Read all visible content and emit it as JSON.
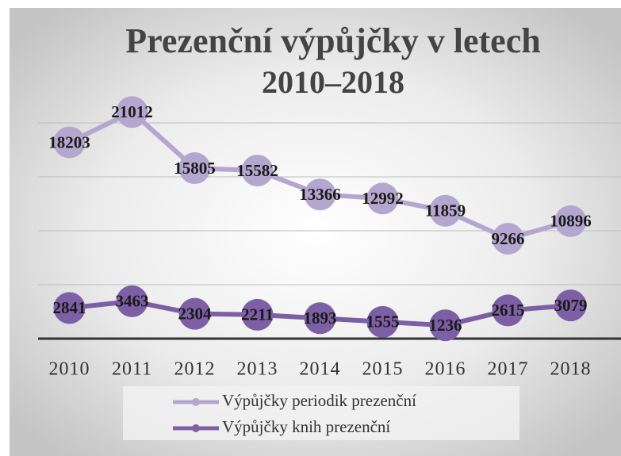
{
  "chart_data": {
    "type": "line",
    "title": "Prezenční výpůjčky v letech",
    "subtitle": "2010–2018",
    "categories": [
      "2010",
      "2011",
      "2012",
      "2013",
      "2014",
      "2015",
      "2016",
      "2017",
      "2018"
    ],
    "series": [
      {
        "name": "Výpůjčky periodik prezenční",
        "color": "#b4a7cf",
        "values": [
          18203,
          21012,
          15805,
          15582,
          13366,
          12992,
          11859,
          9266,
          10896
        ]
      },
      {
        "name": "Výpůjčky knih prezenční",
        "color": "#7d5fa6",
        "values": [
          2841,
          3463,
          2304,
          2211,
          1893,
          1555,
          1236,
          2615,
          3079
        ]
      }
    ],
    "ylim": [
      0,
      25000
    ],
    "yticks": [
      0,
      5000,
      10000,
      15000,
      20000,
      25000
    ],
    "grid": true,
    "legend": "bottom"
  }
}
